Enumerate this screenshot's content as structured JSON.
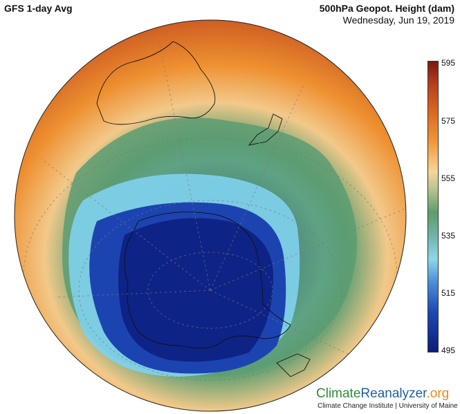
{
  "header": {
    "left_title": "GFS 1-day Avg",
    "right_title": "500hPa Geopot. Height (dam)",
    "date": "Wednesday, Jun 19, 2019"
  },
  "colorbar": {
    "ticks": [
      "595",
      "575",
      "555",
      "535",
      "515",
      "495"
    ],
    "colors": {
      "high": "#7a1a12",
      "mid": "#f7d698",
      "low": "#0c1e7a"
    }
  },
  "branding": {
    "part1": "Climate",
    "part2": "Reanalyzer",
    "part3": ".org",
    "institute": "Climate Change Institute | University of Maine"
  }
}
